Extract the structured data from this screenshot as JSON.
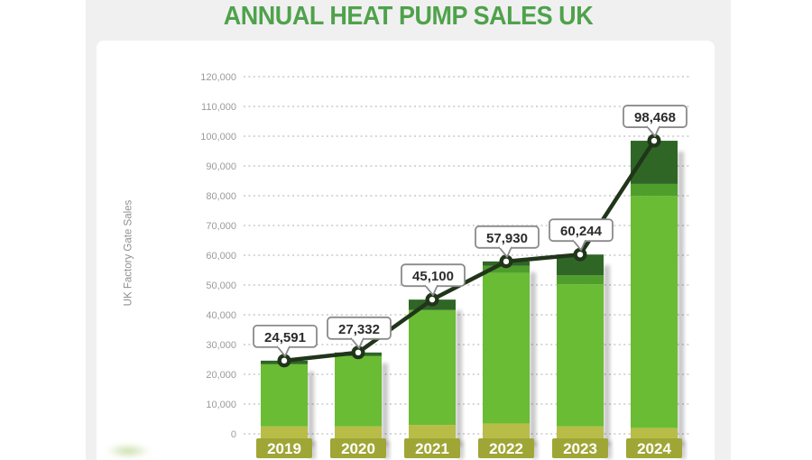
{
  "page": {
    "title": "ANNUAL HEAT PUMP SALES UK"
  },
  "colors": {
    "title_green": "#4fa24b",
    "page_background": "#ffffff",
    "card_background": "#f0f0f1",
    "panel_background": "#ffffff",
    "gridline_gray": "#bdbdbd",
    "tick_label_gray": "#9b9b9b",
    "axis_title_gray": "#8f8f8f",
    "year_badge_olive": "#9fa636",
    "year_badge_text": "#ffffff",
    "callout_border": "#8b8b8b",
    "callout_background": "#ffffff",
    "callout_text": "#2b2b2b",
    "bar_shadow": "#000000"
  },
  "chart_data": {
    "type": "bar",
    "title": "ANNUAL HEAT PUMP SALES UK",
    "subtitle": "",
    "xlabel": "",
    "ylabel": "UK Factory Gate Sales",
    "categories": [
      "2019",
      "2020",
      "2021",
      "2022",
      "2023",
      "2024"
    ],
    "totals": [
      24591,
      27332,
      45100,
      57930,
      60244,
      98468
    ],
    "value_labels": [
      "24,591",
      "27,332",
      "45,100",
      "57,930",
      "60,244",
      "98,468"
    ],
    "series": [
      {
        "name": "base-olive-band",
        "color": "#b7bd47",
        "values": [
          2500,
          2500,
          3000,
          3500,
          2500,
          2000
        ]
      },
      {
        "name": "main-light-green",
        "color": "#6abc34",
        "values": [
          20891,
          23632,
          38600,
          50530,
          47744,
          77968
        ]
      },
      {
        "name": "mid-green-band",
        "color": "#4f9e2c",
        "values": [
          0,
          0,
          0,
          2400,
          3000,
          4000
        ]
      },
      {
        "name": "top-dark-green",
        "color": "#2f6626",
        "values": [
          1200,
          1200,
          3500,
          1500,
          7000,
          14500
        ]
      }
    ],
    "line_series": {
      "name": "annual-total-trend",
      "color": "#20351a",
      "values": [
        24591,
        27332,
        45100,
        57930,
        60244,
        98468
      ]
    },
    "ylim": [
      0,
      120000
    ],
    "ytick_step": 10000,
    "ytick_labels": [
      "0",
      "10,000",
      "20,000",
      "30,000",
      "40,000",
      "50,000",
      "60,000",
      "70,000",
      "80,000",
      "90,000",
      "100,000",
      "110,000",
      "120,000"
    ],
    "grid": "horizontal-dotted",
    "legend": "none"
  }
}
